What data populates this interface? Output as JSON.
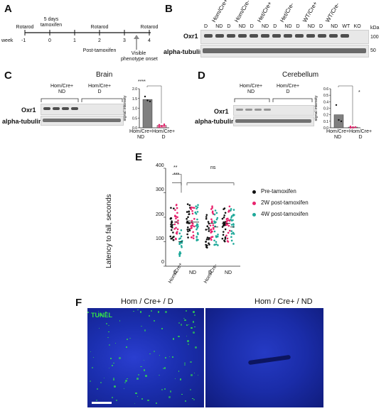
{
  "panels": {
    "A": {
      "label": "A",
      "events_top": [
        "Rotarod",
        "5 days\ntamoxifen",
        "Rotarod",
        "Rotarod"
      ],
      "week_label": "week",
      "weeks": [
        "-1",
        "0",
        "1",
        "2",
        "3",
        "4"
      ],
      "post_tamoxifen": "Post-tamoxifen",
      "visible_onset": "Visible\nphenotype onset"
    },
    "B": {
      "label": "B",
      "group_labels": [
        "Hom/Cre+",
        "Hom/Cre-",
        "Het/Cre+",
        "Het/Cre-",
        "WT/Cre+",
        "WT/Cre-"
      ],
      "lane_labels": [
        "D",
        "ND",
        "D",
        "ND",
        "D",
        "ND",
        "D",
        "ND",
        "D",
        "ND",
        "D",
        "ND",
        "WT",
        "KO"
      ],
      "kda": "kDa",
      "oxr1": "Oxr1",
      "tubulin": "alpha-tubulin",
      "mw": [
        "100",
        "50"
      ]
    },
    "C": {
      "label": "C",
      "title": "Brain",
      "group1": "Hom/Cre+\nND",
      "group2": "Hom/Cre+\nD",
      "oxr1": "Oxr1",
      "tubulin": "alpha-tubulin",
      "ylabel": "signal intensity",
      "yticks": [
        "0.0",
        "0.5",
        "1.0",
        "1.5",
        "2.0"
      ],
      "significance": "****",
      "xcats": [
        "Hom/Cre+\nND",
        "Hom/Cre+\nD"
      ]
    },
    "D": {
      "label": "D",
      "title": "Cerebellum",
      "group1": "Hom/Cre+\nND",
      "group2": "Hom/Cre+\nD",
      "oxr1": "Oxr1",
      "tubulin": "alpha-tubulin",
      "ylabel": "signal intensity",
      "yticks": [
        "0.0",
        "0.1",
        "0.2",
        "0.3",
        "0.4",
        "0.5",
        "0.6"
      ],
      "significance": "*",
      "xcats": [
        "Hom/Cre+\nND",
        "Hom/Cre+\nD"
      ]
    },
    "E": {
      "label": "E",
      "ylabel": "Latency to fall, seconds",
      "yticks": [
        "0",
        "100",
        "200",
        "300",
        "400"
      ],
      "xlabels": [
        "D",
        "ND",
        "D",
        "ND"
      ],
      "groups": [
        "Hom/Cre+",
        "Hom/Cre-"
      ],
      "sig1": "**",
      "sig2": "***",
      "ns": "ns",
      "legend": [
        "Pre-tamoxifen",
        "2W post-tamoxifen",
        "4W post-tamoxifen"
      ]
    },
    "F": {
      "label": "F",
      "left_title": "Hom / Cre+ / D",
      "right_title": "Hom / Cre+ / ND",
      "tunel": "TUNEL"
    }
  },
  "colors": {
    "pre": "#111111",
    "w2": "#e8236d",
    "w4": "#1fa99a",
    "bar_nd": "#7f7f7f",
    "bar_d": "#f08cb0",
    "tunel": "#33e04a",
    "dapi": "#1b2fb0"
  },
  "chart_data": [
    {
      "type": "bar",
      "panel": "C",
      "categories": [
        "Hom/Cre+ ND",
        "Hom/Cre+ D"
      ],
      "values": [
        1.45,
        0.12
      ],
      "ylim": [
        0,
        2.0
      ],
      "ylabel": "signal intensity",
      "points": [
        [
          1.6,
          1.4,
          1.35
        ],
        [
          0.05,
          0.1,
          0.12,
          0.15,
          0.08,
          0.18
        ]
      ]
    },
    {
      "type": "bar",
      "panel": "D",
      "categories": [
        "Hom/Cre+ ND",
        "Hom/Cre+ D"
      ],
      "values": [
        0.2,
        0.01
      ],
      "ylim": [
        0,
        0.6
      ],
      "ylabel": "signal intensity",
      "points": [
        [
          0.35,
          0.12,
          0.1
        ],
        [
          0.0,
          0.01,
          0.01,
          0.02,
          0.0,
          0.01
        ]
      ]
    },
    {
      "type": "scatter",
      "panel": "E",
      "categories": [
        "Hom/Cre+ D",
        "Hom/Cre+ ND",
        "Hom/Cre- D",
        "Hom/Cre- ND"
      ],
      "ylim": [
        0,
        400
      ],
      "ylabel": "Latency to fall, seconds",
      "series": [
        {
          "name": "Pre-tamoxifen",
          "medians": [
            170,
            185,
            150,
            175
          ]
        },
        {
          "name": "2W post-tamoxifen",
          "medians": [
            180,
            180,
            175,
            175
          ]
        },
        {
          "name": "4W post-tamoxifen",
          "medians": [
            100,
            180,
            160,
            160
          ]
        }
      ]
    }
  ]
}
